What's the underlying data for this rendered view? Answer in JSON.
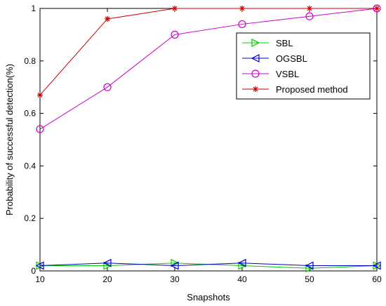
{
  "chart_data": {
    "type": "line",
    "xlabel": "Snapshots",
    "ylabel": "Probability of successful detection(%)",
    "x": [
      10,
      20,
      30,
      40,
      50,
      60
    ],
    "xlim": [
      10,
      60
    ],
    "ylim": [
      0,
      1
    ],
    "xticks": [
      "10",
      "20",
      "30",
      "40",
      "50",
      "60"
    ],
    "yticks": [
      "0",
      "0.2",
      "0.4",
      "0.6",
      "0.8",
      "1"
    ],
    "grid": false,
    "legend_position": "top-right",
    "series": [
      {
        "name": "SBL",
        "values": [
          0.02,
          0.02,
          0.03,
          0.02,
          0.01,
          0.02
        ],
        "color": "#00cc00",
        "marker": "triangle-right"
      },
      {
        "name": "OGSBL",
        "values": [
          0.02,
          0.03,
          0.02,
          0.03,
          0.02,
          0.02
        ],
        "color": "#0000cc",
        "marker": "triangle-left"
      },
      {
        "name": "VSBL",
        "values": [
          0.54,
          0.7,
          0.9,
          0.94,
          0.97,
          1.0
        ],
        "color": "#cc00cc",
        "marker": "circle"
      },
      {
        "name": "Proposed method",
        "values": [
          0.67,
          0.96,
          1.0,
          1.0,
          1.0,
          1.0
        ],
        "color": "#cc0000",
        "marker": "star"
      }
    ]
  }
}
